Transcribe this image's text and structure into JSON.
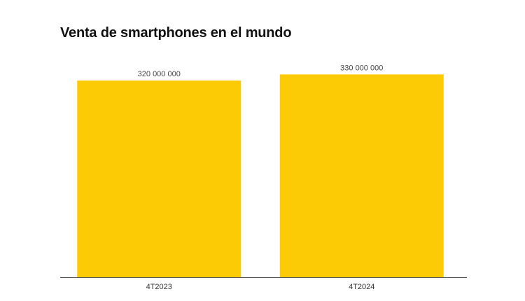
{
  "chart_data": {
    "type": "bar",
    "title": "Venta de smartphones en el mundo",
    "categories": [
      "4T2023",
      "4T2024"
    ],
    "values": [
      320000000,
      330000000
    ],
    "value_labels": [
      "320 000 000",
      "330 000 000"
    ],
    "xlabel": "",
    "ylabel": "",
    "ylim": [
      0,
      360000000
    ],
    "grid": false,
    "bar_color": "#FDCB05",
    "axis_color": "#555555"
  }
}
